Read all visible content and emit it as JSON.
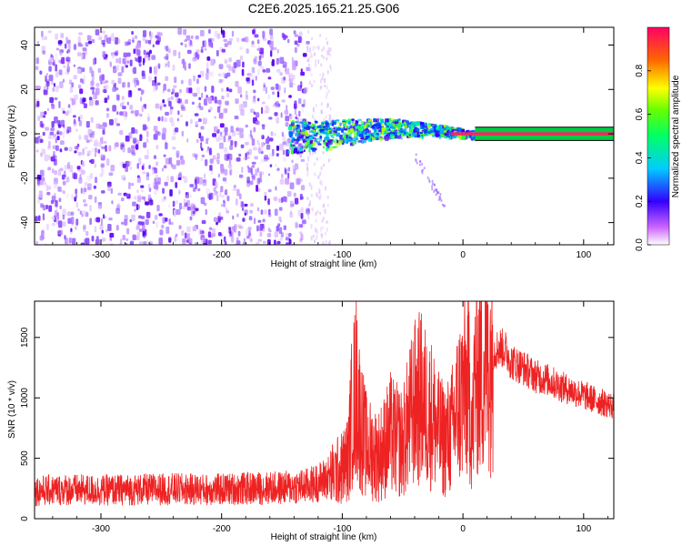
{
  "title": "C2E6.2025.165.21.25.G06",
  "colors": {
    "snr_line": "#ee2222",
    "axis": "#000000",
    "background": "#ffffff"
  },
  "chart_data": [
    {
      "type": "heatmap",
      "title": "C2E6.2025.165.21.25.G06",
      "xlabel": "Height of straight line (km)",
      "ylabel": "Frequency (Hz)",
      "xlim": [
        -355,
        125
      ],
      "ylim": [
        -50,
        48
      ],
      "x_ticks": [
        -300,
        -200,
        -100,
        0,
        100
      ],
      "y_ticks": [
        -40,
        -20,
        0,
        20,
        40
      ],
      "grid": false,
      "colorbar": {
        "label": "Normalized spectral amplitude",
        "range": [
          0.0,
          1.0
        ],
        "ticks": [
          0.0,
          0.2,
          0.4,
          0.6,
          0.8
        ],
        "colormap": "rainbow-purple-to-red"
      },
      "regions": [
        {
          "x_range": [
            -355,
            -130
          ],
          "freq_range": [
            -50,
            48
          ],
          "amplitude": 0.12,
          "description_label": ""
        },
        {
          "x_range": [
            -130,
            -110
          ],
          "freq_range": [
            -50,
            48
          ],
          "amplitude": 0.05
        },
        {
          "x_range": [
            -145,
            10
          ],
          "freq_range": [
            -6,
            8
          ],
          "amplitude": 0.3
        },
        {
          "x_range": [
            10,
            125
          ],
          "freq_range": [
            -1,
            1
          ],
          "amplitude": 1.0
        }
      ]
    },
    {
      "type": "line",
      "xlabel": "Height of straight line (km)",
      "ylabel": "SNR (10 * v/v)",
      "xlim": [
        -355,
        125
      ],
      "ylim": [
        0,
        1800
      ],
      "x_ticks": [
        -300,
        -200,
        -100,
        0,
        100
      ],
      "y_ticks": [
        0,
        500,
        1000,
        1500
      ],
      "grid": false,
      "series": [
        {
          "x": [
            -355,
            -330,
            -300,
            -270,
            -240,
            -210,
            -180,
            -150,
            -130,
            -120,
            -110,
            -100,
            -95,
            -92,
            -88,
            -85,
            -80,
            -75,
            -70,
            -65,
            -60,
            -55,
            -50,
            -45,
            -40,
            -35,
            -30,
            -25,
            -20,
            -15,
            -10,
            -5,
            0,
            5,
            8,
            10,
            15,
            20,
            25,
            30,
            35,
            40,
            50,
            60,
            70,
            80,
            90,
            100,
            110,
            125
          ],
          "y": [
            230,
            240,
            235,
            240,
            245,
            240,
            250,
            255,
            270,
            300,
            350,
            420,
            500,
            900,
            1100,
            800,
            600,
            550,
            520,
            600,
            700,
            650,
            620,
            800,
            950,
            1000,
            900,
            850,
            700,
            650,
            700,
            900,
            1050,
            1100,
            700,
            1200,
            1250,
            1300,
            1380,
            1420,
            1400,
            1300,
            1250,
            1180,
            1150,
            1100,
            1060,
            1020,
            980,
            930
          ]
        }
      ]
    }
  ]
}
